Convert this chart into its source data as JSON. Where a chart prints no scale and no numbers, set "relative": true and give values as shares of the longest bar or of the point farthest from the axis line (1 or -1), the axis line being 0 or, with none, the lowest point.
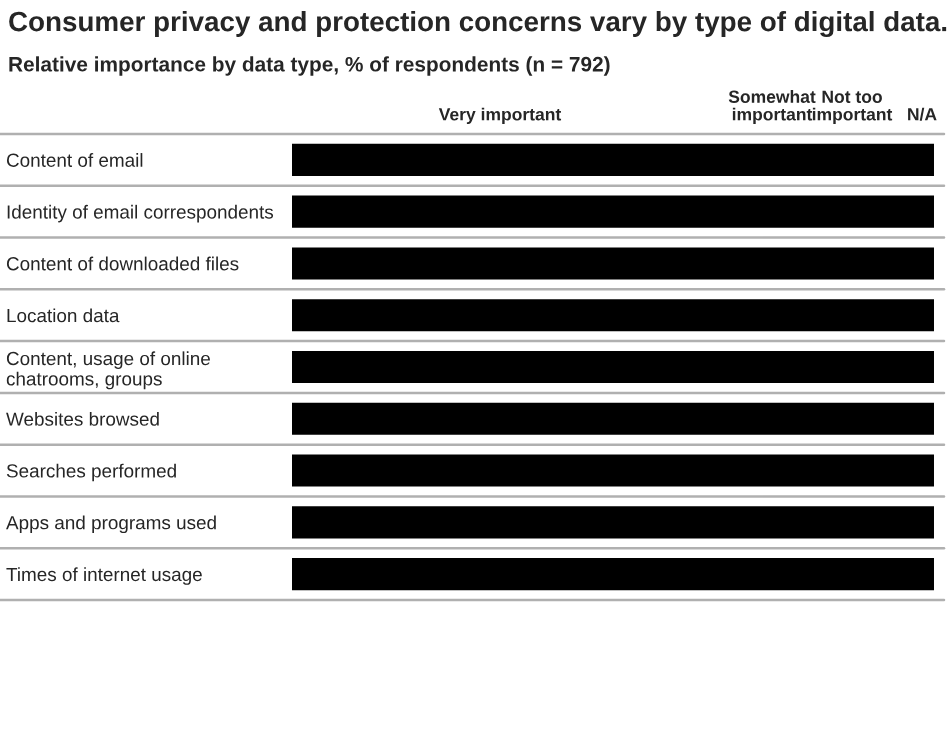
{
  "chart_data": {
    "type": "bar",
    "orientation": "horizontal",
    "relative": true,
    "title": "Consumer privacy and protection concerns vary by type of digital data.",
    "subtitle": "Relative importance by data type, % of respondents (n = 792)",
    "categories": [
      "Content of email",
      "Identity of email correspondents",
      "Content of downloaded files",
      "Location data",
      "Content, usage of online\nchatrooms, groups",
      "Websites browsed",
      "Searches performed",
      "Apps and programs used",
      "Times of internet usage"
    ],
    "values": [
      1,
      1,
      1,
      1,
      1,
      1,
      1,
      1,
      1
    ],
    "color": "#000000",
    "annotations": [
      "Very important",
      "Somewhat\nimportant",
      "Not too\nimportant",
      "N/A"
    ]
  }
}
